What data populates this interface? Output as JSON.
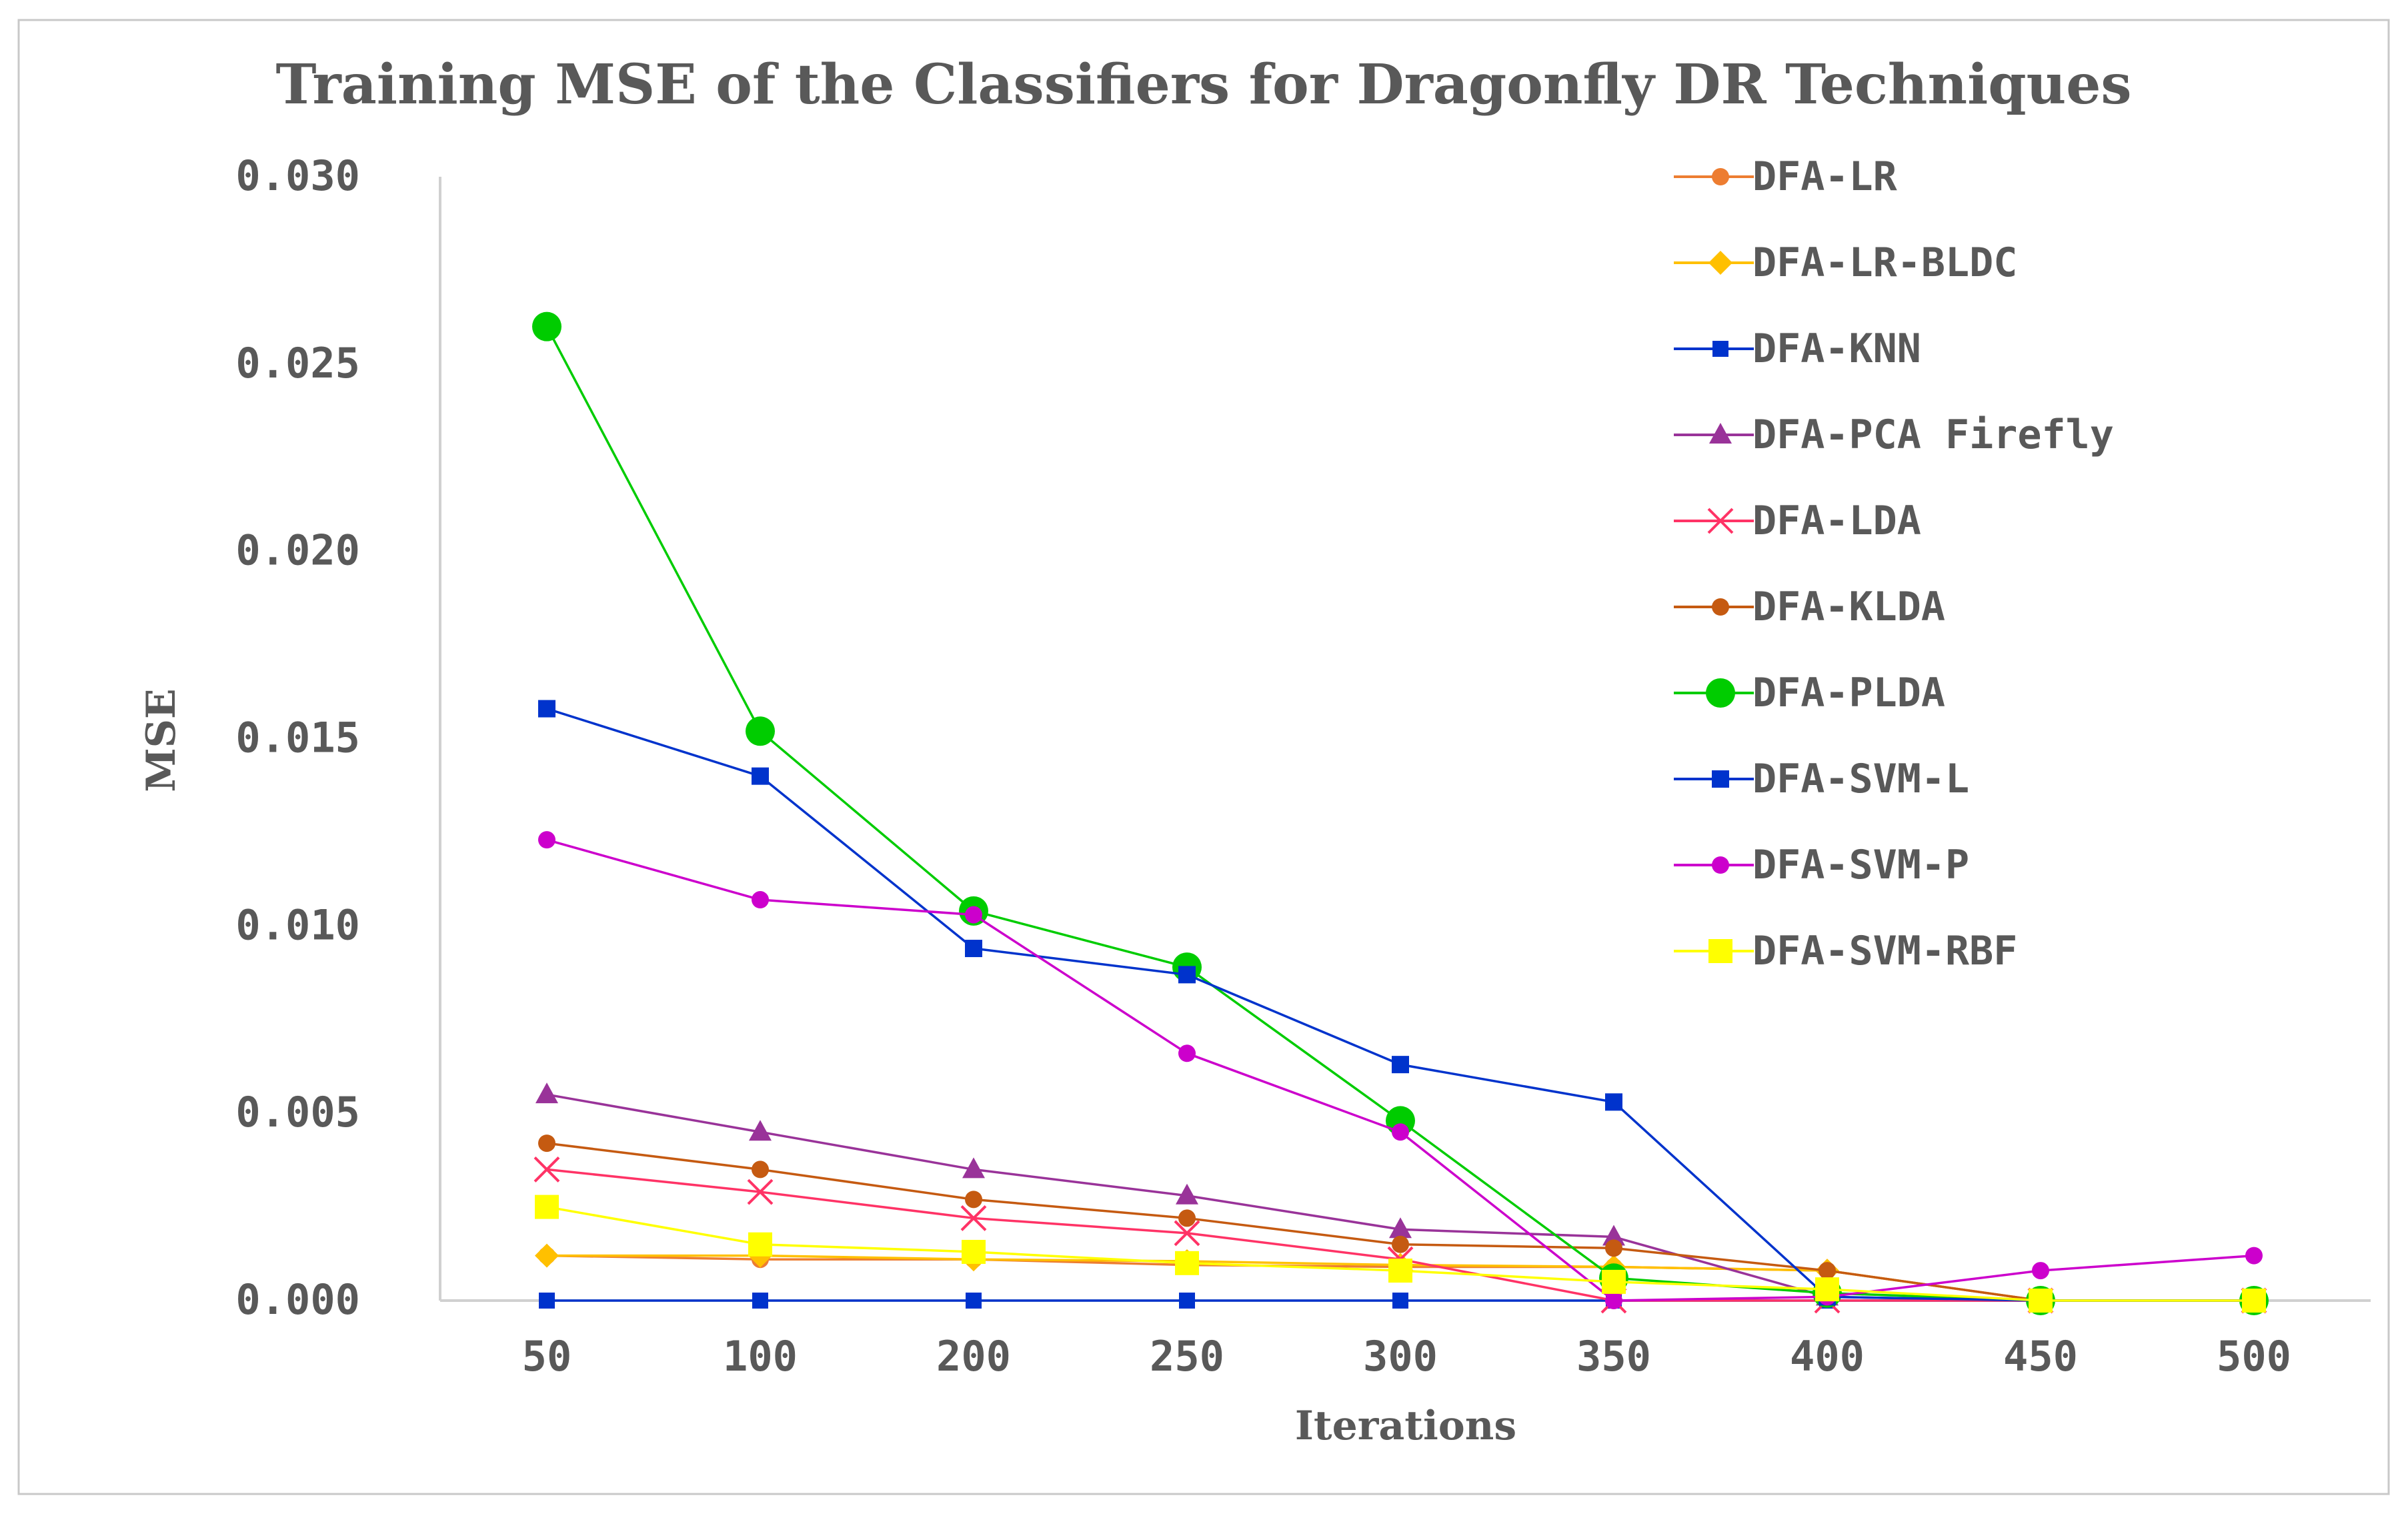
{
  "chart_data": {
    "type": "line",
    "title": "Training MSE of the Classifiers  for Dragonfly DR Techniques",
    "xlabel": "Iterations",
    "ylabel": "MSE",
    "categories": [
      "50",
      "100",
      "200",
      "250",
      "300",
      "350",
      "400",
      "450",
      "500"
    ],
    "yticks": [
      "0.030",
      "0.025",
      "0.020",
      "0.015",
      "0.010",
      "0.005",
      "0.000"
    ],
    "ylim": [
      0,
      0.03
    ],
    "grid": false,
    "legend_position": "right",
    "series": [
      {
        "name": "DFA-LR",
        "color": "#ED7D31",
        "marker": "circle",
        "values": [
          0.0012,
          0.0011,
          0.0011,
          0.00095,
          0.0009,
          0.0009,
          0.0008,
          0.0,
          0.0
        ]
      },
      {
        "name": "DFA-LR-BLDC",
        "color": "#FFC000",
        "marker": "diamond",
        "values": [
          0.0012,
          0.0012,
          0.0011,
          0.00105,
          0.00095,
          0.0009,
          0.0008,
          0.0,
          0.0
        ]
      },
      {
        "name": "DFA-KNN",
        "color": "#0033CC",
        "marker": "square-small",
        "values": [
          0.0,
          0.0,
          0.0,
          0.0,
          0.0,
          0.0,
          0.0,
          0.0,
          0.0
        ]
      },
      {
        "name": "DFA-PCA Firefly",
        "color": "#993399",
        "marker": "triangle",
        "values": [
          0.0055,
          0.0045,
          0.0035,
          0.0028,
          0.0019,
          0.0017,
          0.0001,
          0.0,
          0.0
        ]
      },
      {
        "name": "DFA-LDA",
        "color": "#FF3366",
        "marker": "cross",
        "values": [
          0.0035,
          0.0029,
          0.0022,
          0.0018,
          0.0011,
          0.0,
          0.0,
          0.0,
          0.0
        ]
      },
      {
        "name": "DFA-KLDA",
        "color": "#C55A11",
        "marker": "circle",
        "values": [
          0.0042,
          0.0035,
          0.0027,
          0.0022,
          0.0015,
          0.0014,
          0.0008,
          0.0,
          0.0
        ]
      },
      {
        "name": "DFA-PLDA",
        "color": "#00CC00",
        "marker": "circle-large",
        "values": [
          0.026,
          0.0152,
          0.0104,
          0.0089,
          0.0048,
          0.0006,
          0.0002,
          0.0,
          0.0
        ]
      },
      {
        "name": "DFA-SVM-L",
        "color": "#0033CC",
        "marker": "square",
        "values": [
          0.0158,
          0.014,
          0.0094,
          0.0087,
          0.0063,
          0.0053,
          0.0001,
          0.0,
          0.0
        ]
      },
      {
        "name": "DFA-SVM-P",
        "color": "#CC00CC",
        "marker": "circle",
        "values": [
          0.0123,
          0.0107,
          0.0103,
          0.0066,
          0.0045,
          0.0,
          0.0001,
          0.0008,
          0.0012
        ]
      },
      {
        "name": "DFA-SVM-RBF",
        "color": "#FFFF00",
        "marker": "square-large",
        "values": [
          0.0025,
          0.0015,
          0.0013,
          0.001,
          0.0008,
          0.0005,
          0.0003,
          0.0,
          0.0
        ]
      }
    ]
  }
}
